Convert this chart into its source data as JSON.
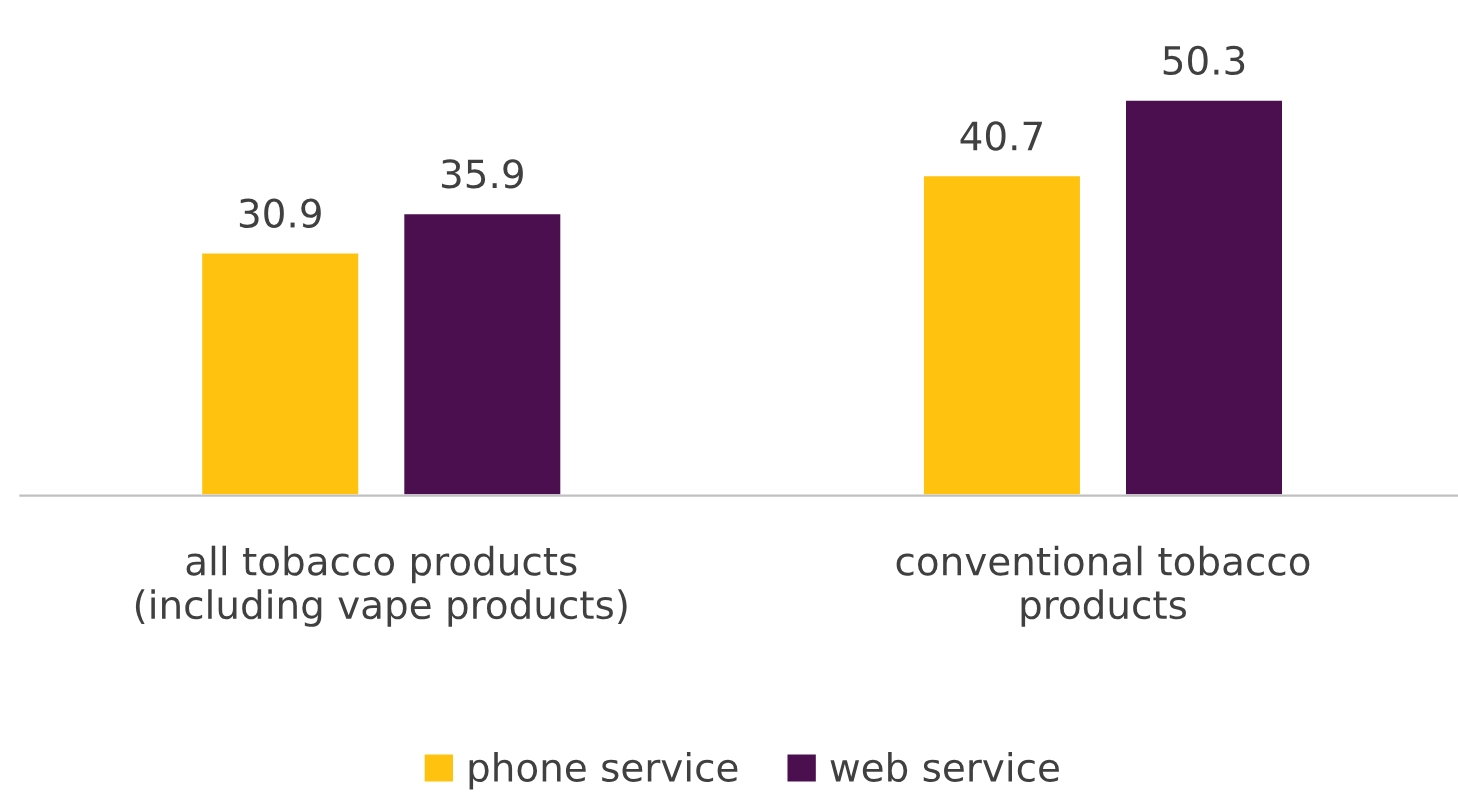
{
  "chart_data": {
    "type": "bar",
    "categories": [
      "all tobacco products\n(including vape products)",
      "conventional tobacco\nproducts"
    ],
    "series": [
      {
        "name": "phone service",
        "color": "#ffc20e",
        "values": [
          30.9,
          40.7
        ]
      },
      {
        "name": "web service",
        "color": "#4b0f4f",
        "values": [
          35.9,
          50.3
        ]
      }
    ],
    "data_labels": true,
    "legend": "bottom",
    "grid": false
  }
}
